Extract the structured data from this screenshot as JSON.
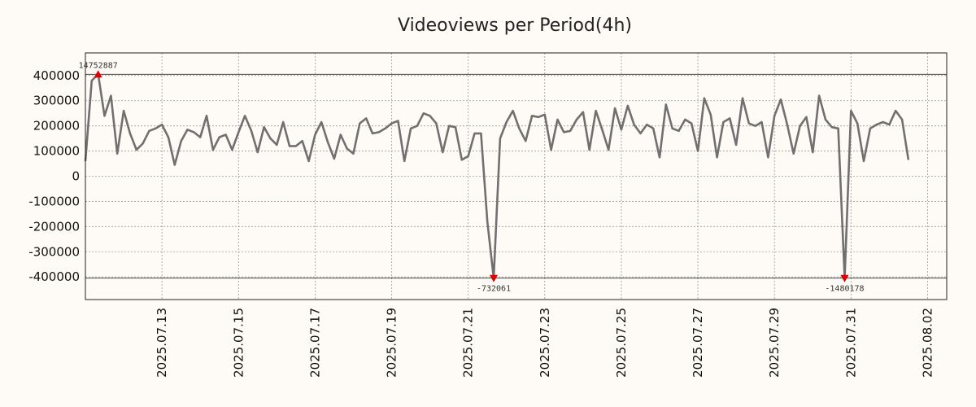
{
  "chart_data": {
    "type": "line",
    "title": "Videoviews per Period(4h)",
    "xlabel": "",
    "ylabel": "",
    "grid": true,
    "xlim": [
      "2025-07-11T00:00",
      "2025-08-02T12:00"
    ],
    "ylim": [
      -490000,
      490000
    ],
    "y_ticks": [
      400000,
      300000,
      200000,
      100000,
      0,
      -100000,
      -200000,
      -300000,
      -400000
    ],
    "x_ticks": [
      "2025.07.13",
      "2025.07.15",
      "2025.07.17",
      "2025.07.19",
      "2025.07.21",
      "2025.07.23",
      "2025.07.25",
      "2025.07.27",
      "2025.07.29",
      "2025.07.31",
      "2025.08.02"
    ],
    "x_tick_dates": [
      "2025-07-13",
      "2025-07-15",
      "2025-07-17",
      "2025-07-19",
      "2025-07-21",
      "2025-07-23",
      "2025-07-25",
      "2025-07-27",
      "2025-07-29",
      "2025-07-31",
      "2025-08-02"
    ],
    "reference_lines": [
      405000,
      -405000
    ],
    "series": [
      {
        "color": "#707070",
        "start": "2025-07-11T00:00",
        "interval_hours": 4,
        "values": [
          60000,
          380000,
          405000,
          240000,
          320000,
          90000,
          260000,
          170000,
          105000,
          130000,
          180000,
          190000,
          205000,
          155000,
          45000,
          140000,
          185000,
          175000,
          155000,
          240000,
          105000,
          155000,
          165000,
          105000,
          175000,
          240000,
          180000,
          95000,
          195000,
          150000,
          125000,
          215000,
          120000,
          120000,
          140000,
          60000,
          165000,
          215000,
          135000,
          70000,
          165000,
          110000,
          90000,
          210000,
          230000,
          170000,
          175000,
          190000,
          210000,
          220000,
          60000,
          190000,
          200000,
          250000,
          240000,
          210000,
          95000,
          200000,
          195000,
          65000,
          80000,
          170000,
          170000,
          -180000,
          -405000,
          150000,
          215000,
          260000,
          190000,
          140000,
          240000,
          235000,
          245000,
          105000,
          225000,
          175000,
          180000,
          225000,
          255000,
          105000,
          260000,
          185000,
          105000,
          270000,
          185000,
          280000,
          205000,
          170000,
          205000,
          190000,
          75000,
          285000,
          190000,
          180000,
          225000,
          210000,
          100000,
          310000,
          245000,
          75000,
          215000,
          230000,
          125000,
          310000,
          210000,
          200000,
          215000,
          75000,
          240000,
          305000,
          205000,
          90000,
          200000,
          235000,
          95000,
          320000,
          225000,
          195000,
          190000,
          -405000,
          260000,
          210000,
          60000,
          190000,
          205000,
          215000,
          205000,
          260000,
          225000,
          65000
        ]
      }
    ],
    "annotations": [
      {
        "text": "14752887",
        "index": 2,
        "y": 405000,
        "marker": "up-triangle",
        "color": "#e00000",
        "label_position": "above"
      },
      {
        "text": "-732061",
        "index": 64,
        "y": -405000,
        "marker": "down-triangle",
        "color": "#e00000",
        "label_position": "below"
      },
      {
        "text": "-1480178",
        "index": 119,
        "y": -405000,
        "marker": "down-triangle",
        "color": "#e00000",
        "label_position": "below"
      }
    ]
  }
}
